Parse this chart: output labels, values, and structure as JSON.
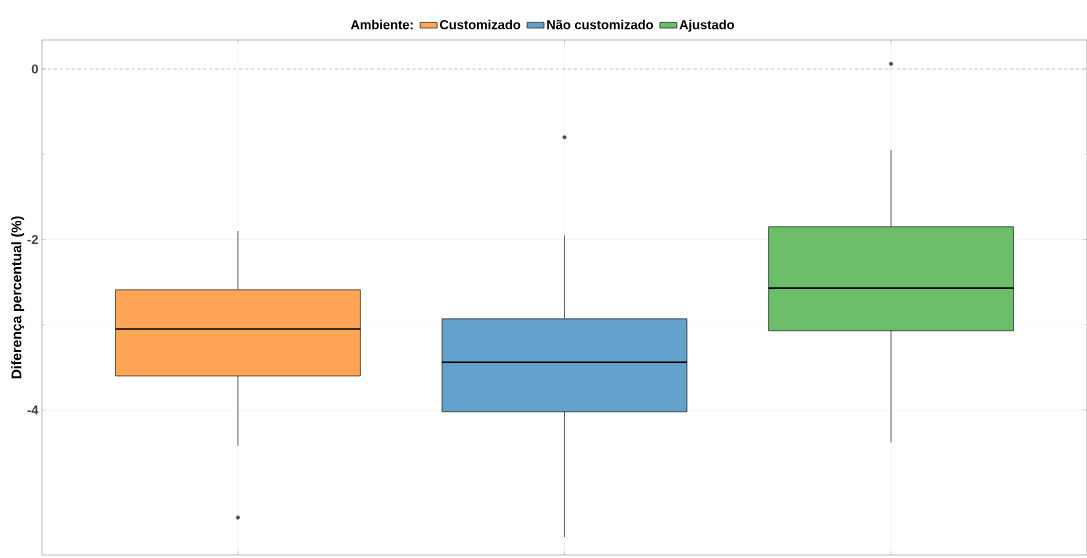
{
  "chart_data": {
    "type": "box",
    "ylabel": "Diferença percentual (%)",
    "legend_title": "Ambiente:",
    "categories": [
      null,
      null,
      null
    ],
    "series": [
      {
        "name": "Customizado",
        "color": "#ffa556",
        "boxes": [
          {
            "low": -4.42,
            "q1": -3.6,
            "median": -3.05,
            "q3": -2.59,
            "high": -1.9,
            "outliers": [
              -5.26
            ]
          },
          null,
          null
        ]
      },
      {
        "name": "Não customizado",
        "color": "#63a1ca",
        "boxes": [
          null,
          {
            "low": -5.49,
            "q1": -4.02,
            "median": -3.44,
            "q3": -2.93,
            "high": -1.95,
            "outliers": [
              -0.8
            ]
          },
          null
        ]
      },
      {
        "name": "Ajustado",
        "color": "#6bbd69",
        "boxes": [
          null,
          null,
          {
            "low": -4.38,
            "q1": -3.07,
            "median": -2.57,
            "q3": -1.85,
            "high": -0.95,
            "outliers": [
              0.06
            ]
          }
        ]
      }
    ],
    "ylim": [
      -5.7,
      0.34
    ],
    "yticks": [
      -4,
      -2,
      0
    ],
    "tick_labels": "y",
    "grid": true,
    "legend": "top",
    "ref_lines": [
      {
        "axis": "y",
        "value": 0,
        "color": "#bbbbbb",
        "line_style": "dashed"
      }
    ]
  }
}
